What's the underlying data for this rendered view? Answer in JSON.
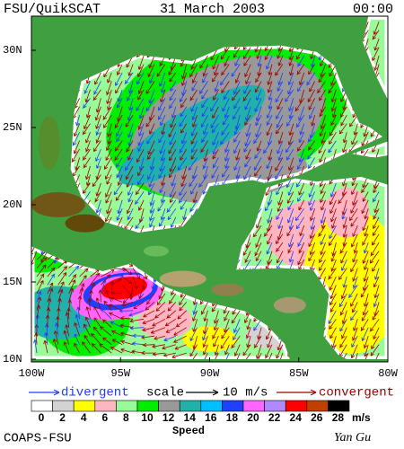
{
  "header": {
    "title": "FSU/QuikSCAT",
    "date": "31 March 2003",
    "time": "00:00"
  },
  "map": {
    "lat_labels": [
      "30N",
      "25N",
      "20N",
      "15N",
      "10N"
    ],
    "lon_labels": [
      "100W",
      "95W",
      "90W",
      "85W",
      "80W"
    ]
  },
  "legend": {
    "divergent": "divergent",
    "scale": "scale",
    "scale_value": "10 m/s",
    "convergent": "convergent"
  },
  "colorbar": {
    "ticks": [
      0,
      2,
      4,
      6,
      8,
      10,
      12,
      14,
      16,
      18,
      20,
      22,
      24,
      26,
      28
    ],
    "colors": [
      "#ffffff",
      "#d3d3d3",
      "#ffff00",
      "#ffb6c1",
      "#98fb98",
      "#00ee00",
      "#999999",
      "#20b2aa",
      "#00bfff",
      "#1e40ff",
      "#ff66ff",
      "#b088ff",
      "#ff0000",
      "#c04000",
      "#000000"
    ],
    "unit": "m/s",
    "label": "Speed"
  },
  "footer": {
    "institution": "COAPS-FSU",
    "author": "Yan Gu"
  }
}
